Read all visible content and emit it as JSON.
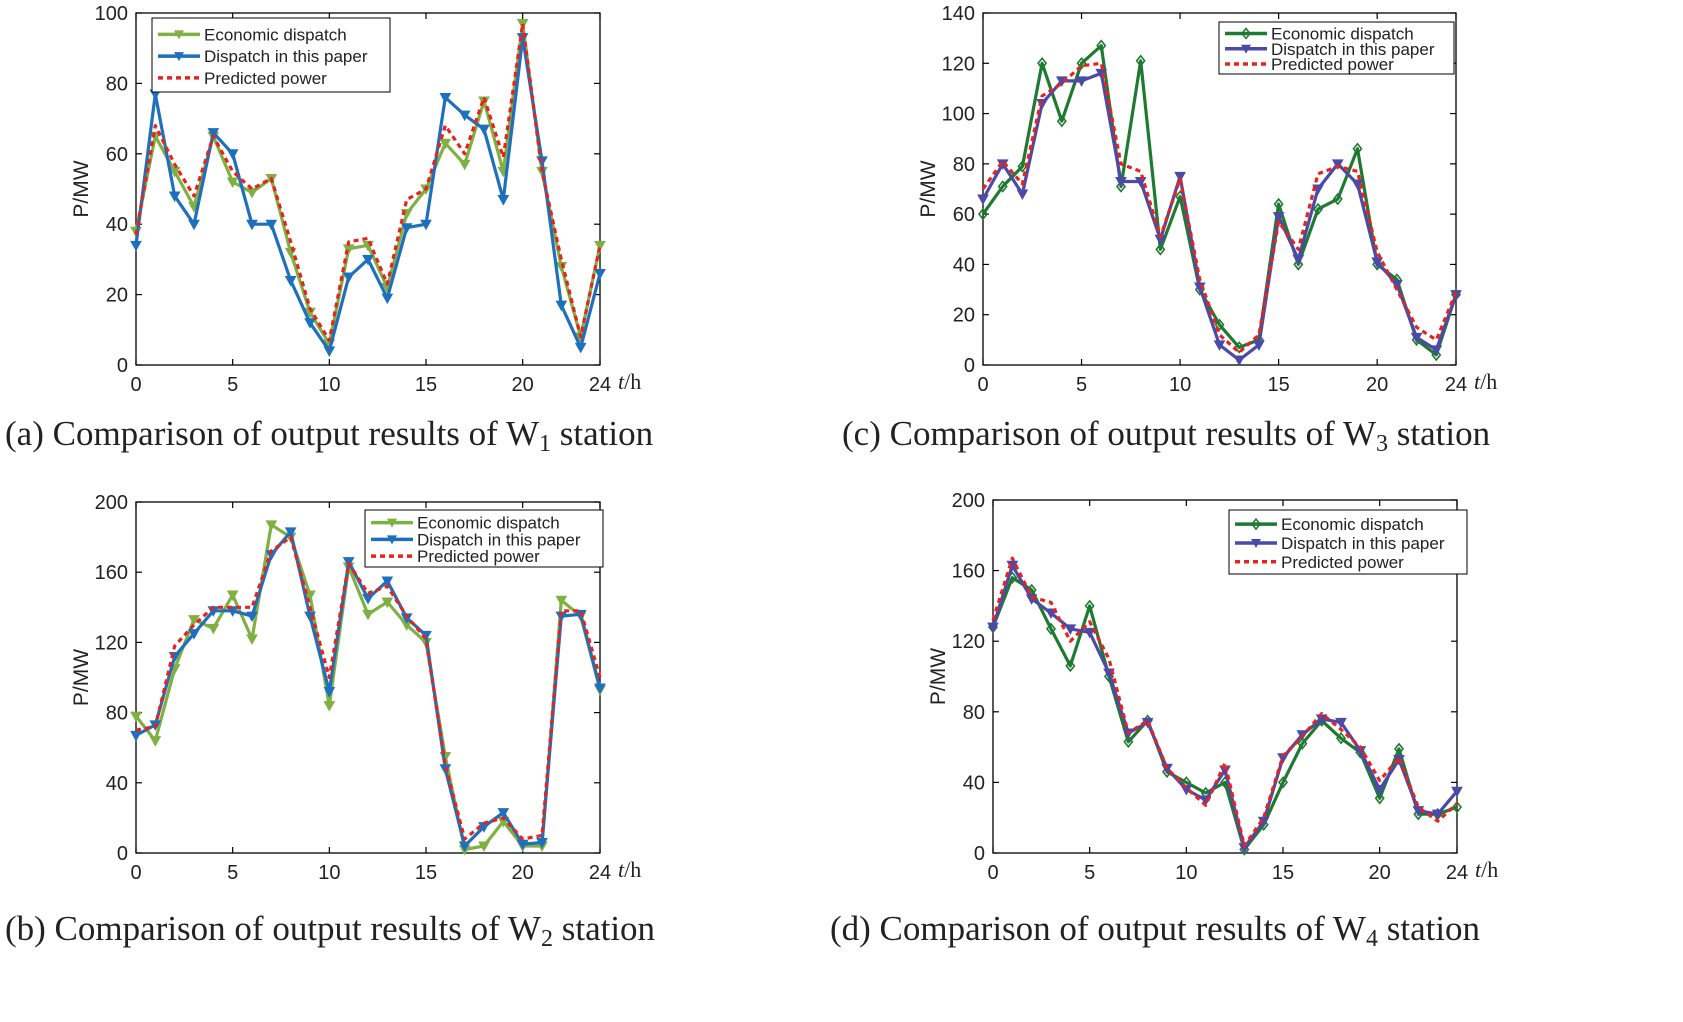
{
  "colors": {
    "economic_light": "#7fb142",
    "economic_dark": "#1f7a31",
    "dispatch_blue": "#1f6fbf",
    "dispatch_purple": "#4a4aa8",
    "predicted_red": "#e8231e",
    "axis": "#000000"
  },
  "chart_data": [
    {
      "type": "line",
      "panel": "a",
      "caption_prefix": "(a) Comparison of output results of W",
      "caption_sub": "1",
      "caption_suffix": " station",
      "ylabel": "P/MW",
      "xlabel_italic": "t",
      "xlabel_unit": "/h",
      "xlim": [
        0,
        24
      ],
      "ylim": [
        0,
        100
      ],
      "xticks": [
        0,
        5,
        10,
        15,
        20,
        24
      ],
      "yticks": [
        0,
        20,
        40,
        60,
        80,
        100
      ],
      "legend_position": "top-left",
      "legend": [
        "Economic dispatch",
        "Dispatch in this paper",
        "Predicted power"
      ],
      "x": [
        0,
        1,
        2,
        3,
        4,
        5,
        6,
        7,
        8,
        9,
        10,
        11,
        12,
        13,
        14,
        15,
        16,
        17,
        18,
        19,
        20,
        21,
        22,
        23,
        24
      ],
      "series": [
        {
          "name": "Economic dispatch",
          "style": "economic_light",
          "marker": "triangle",
          "values": [
            38,
            65,
            55,
            45,
            65,
            52,
            49,
            53,
            32,
            15,
            6,
            33,
            34,
            22,
            43,
            50,
            63,
            57,
            75,
            55,
            97,
            55,
            28,
            8,
            34
          ]
        },
        {
          "name": "Dispatch in this paper",
          "style": "dispatch_blue",
          "marker": "triangle",
          "values": [
            34,
            77,
            48,
            40,
            66,
            60,
            40,
            40,
            24,
            12,
            4,
            25,
            30,
            19,
            39,
            40,
            76,
            71,
            67,
            47,
            93,
            58,
            17,
            5,
            26
          ]
        },
        {
          "name": "Predicted power",
          "style": "predicted_red",
          "marker": "none",
          "values": [
            37,
            68,
            57,
            48,
            65,
            55,
            50,
            53,
            35,
            16,
            7,
            35,
            36,
            23,
            47,
            50,
            68,
            60,
            76,
            59,
            97,
            55,
            30,
            8,
            34
          ]
        }
      ]
    },
    {
      "type": "line",
      "panel": "b",
      "caption_prefix": "(b) Comparison of output results of W",
      "caption_sub": "2",
      "caption_suffix": " station",
      "ylabel": "P/MW",
      "xlabel_italic": "t",
      "xlabel_unit": "/h",
      "xlim": [
        0,
        24
      ],
      "ylim": [
        0,
        200
      ],
      "xticks": [
        0,
        5,
        10,
        15,
        20,
        24
      ],
      "yticks": [
        0,
        40,
        80,
        120,
        160,
        200
      ],
      "legend_position": "top-right",
      "legend": [
        "Economic dispatch",
        "Dispatch in this paper",
        "Predicted power"
      ],
      "x": [
        0,
        1,
        2,
        3,
        4,
        5,
        6,
        7,
        8,
        9,
        10,
        11,
        12,
        13,
        14,
        15,
        16,
        17,
        18,
        19,
        20,
        21,
        22,
        23,
        24
      ],
      "series": [
        {
          "name": "Economic dispatch",
          "style": "economic_light",
          "marker": "triangle",
          "values": [
            78,
            64,
            105,
            133,
            128,
            147,
            122,
            187,
            180,
            147,
            84,
            163,
            136,
            143,
            130,
            120,
            55,
            2,
            4,
            18,
            4,
            4,
            144,
            135,
            93
          ]
        },
        {
          "name": "Dispatch in this paper",
          "style": "dispatch_blue",
          "marker": "triangle",
          "values": [
            67,
            73,
            112,
            125,
            138,
            138,
            135,
            170,
            183,
            135,
            92,
            166,
            145,
            155,
            134,
            124,
            48,
            4,
            15,
            23,
            5,
            6,
            135,
            136,
            94
          ]
        },
        {
          "name": "Predicted power",
          "style": "predicted_red",
          "marker": "none",
          "values": [
            70,
            72,
            118,
            130,
            140,
            140,
            140,
            172,
            180,
            140,
            100,
            165,
            148,
            152,
            135,
            122,
            50,
            8,
            17,
            20,
            8,
            10,
            138,
            138,
            100
          ]
        }
      ]
    },
    {
      "type": "line",
      "panel": "c",
      "caption_prefix": "(c) Comparison of output results of W",
      "caption_sub": "3",
      "caption_suffix": " station",
      "ylabel": "P/MW",
      "xlabel_italic": "t",
      "xlabel_unit": "/h",
      "xlim": [
        0,
        24
      ],
      "ylim": [
        0,
        140
      ],
      "xticks": [
        0,
        5,
        10,
        15,
        20,
        24
      ],
      "yticks": [
        0,
        20,
        40,
        60,
        80,
        100,
        120,
        140
      ],
      "legend_position": "top-right",
      "legend": [
        "Economic dispatch",
        "Dispatch in this paper",
        "Predicted power"
      ],
      "x": [
        0,
        1,
        2,
        3,
        4,
        5,
        6,
        7,
        8,
        9,
        10,
        11,
        12,
        13,
        14,
        15,
        16,
        17,
        18,
        19,
        20,
        21,
        22,
        23,
        24
      ],
      "series": [
        {
          "name": "Economic dispatch",
          "style": "economic_dark",
          "marker": "diamond",
          "values": [
            60,
            71,
            79,
            120,
            97,
            120,
            127,
            71,
            121,
            46,
            67,
            30,
            16,
            7,
            10,
            64,
            40,
            62,
            66,
            86,
            40,
            34,
            10,
            4,
            28
          ]
        },
        {
          "name": "Dispatch in this paper",
          "style": "dispatch_purple",
          "marker": "triangle",
          "values": [
            66,
            80,
            68,
            104,
            113,
            113,
            116,
            73,
            73,
            50,
            75,
            31,
            8,
            2,
            8,
            59,
            42,
            70,
            80,
            72,
            41,
            32,
            11,
            6,
            28
          ]
        },
        {
          "name": "Predicted power",
          "style": "predicted_red",
          "marker": "none",
          "values": [
            70,
            81,
            72,
            107,
            112,
            119,
            120,
            80,
            77,
            51,
            74,
            34,
            12,
            5,
            12,
            57,
            46,
            76,
            79,
            77,
            45,
            30,
            15,
            10,
            29
          ]
        }
      ]
    },
    {
      "type": "line",
      "panel": "d",
      "caption_prefix": "(d) Comparison of output results of W",
      "caption_sub": "4",
      "caption_suffix": " station",
      "ylabel": "P/MW",
      "xlabel_italic": "t",
      "xlabel_unit": "/h",
      "xlim": [
        0,
        24
      ],
      "ylim": [
        0,
        200
      ],
      "xticks": [
        0,
        5,
        10,
        15,
        20,
        24
      ],
      "yticks": [
        0,
        40,
        80,
        120,
        160,
        200
      ],
      "legend_position": "top-right",
      "legend": [
        "Economic dispatch",
        "Dispatch in this paper",
        "Predicted power"
      ],
      "x": [
        0,
        1,
        2,
        3,
        4,
        5,
        6,
        7,
        8,
        9,
        10,
        11,
        12,
        13,
        14,
        15,
        16,
        17,
        18,
        19,
        20,
        21,
        22,
        23,
        24
      ],
      "series": [
        {
          "name": "Economic dispatch",
          "style": "economic_dark",
          "marker": "diamond",
          "values": [
            128,
            156,
            149,
            127,
            106,
            140,
            100,
            63,
            75,
            46,
            40,
            34,
            40,
            2,
            16,
            40,
            62,
            75,
            65,
            57,
            31,
            59,
            22,
            22,
            26
          ]
        },
        {
          "name": "Dispatch in this paper",
          "style": "dispatch_purple",
          "marker": "triangle",
          "values": [
            128,
            163,
            144,
            136,
            127,
            125,
            102,
            68,
            74,
            48,
            36,
            30,
            47,
            3,
            18,
            54,
            67,
            76,
            74,
            58,
            36,
            53,
            24,
            22,
            35
          ]
        },
        {
          "name": "Predicted power",
          "style": "predicted_red",
          "marker": "none",
          "values": [
            132,
            167,
            145,
            142,
            120,
            131,
            110,
            68,
            75,
            48,
            37,
            27,
            51,
            4,
            20,
            55,
            66,
            79,
            70,
            60,
            41,
            54,
            26,
            18,
            28
          ]
        }
      ]
    }
  ]
}
